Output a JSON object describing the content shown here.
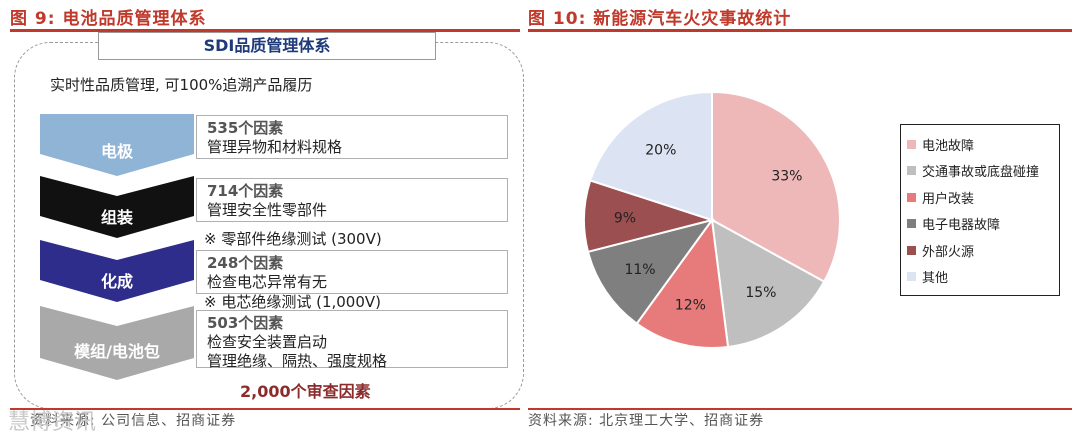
{
  "left": {
    "title": "图 9: 电池品质管理体系",
    "panel_title": "SDI品质管理体系",
    "subtitle": "实时性品质管理, 可100%追溯产品履历",
    "stages": [
      {
        "label": "电极",
        "color": "#8fb4d6",
        "factor": "535个因素",
        "desc": [
          "管理异物和材料规格"
        ],
        "note": ""
      },
      {
        "label": "组装",
        "color": "#111111",
        "factor": "714个因素",
        "desc": [
          "管理安全性零部件"
        ],
        "note": "※ 零部件绝缘测试 (300V)"
      },
      {
        "label": "化成",
        "color": "#2e2d8c",
        "factor": "248个因素",
        "desc": [
          "检查电芯异常有无"
        ],
        "note": "※ 电芯绝缘测试 (1,000V)"
      },
      {
        "label": "模组/电池包",
        "color": "#a9a9a9",
        "factor": "503个因素",
        "desc": [
          "检查安全装置启动",
          "管理绝缘、隔热、强度规格"
        ],
        "note": ""
      }
    ],
    "total": "2,000个审查因素",
    "source": "资料来源: 公司信息、招商证券"
  },
  "right": {
    "title": "图 10: 新能源汽车火灾事故统计",
    "source": "资料来源: 北京理工大学、招商证券"
  },
  "watermark": "慧博资讯",
  "chart_data": {
    "type": "pie",
    "title": "",
    "labels": [
      "电池故障",
      "交通事故或底盘碰撞",
      "用户改装",
      "电子电器故障",
      "外部火源",
      "其他"
    ],
    "values": [
      33,
      15,
      12,
      11,
      9,
      20
    ],
    "value_labels": [
      "33%",
      "15%",
      "12%",
      "11%",
      "9%",
      "20%"
    ],
    "colors": [
      "#efb8b8",
      "#bfbfbf",
      "#e77b7b",
      "#7f7f7f",
      "#9b4f50",
      "#dce3f2"
    ],
    "legend_position": "right"
  }
}
